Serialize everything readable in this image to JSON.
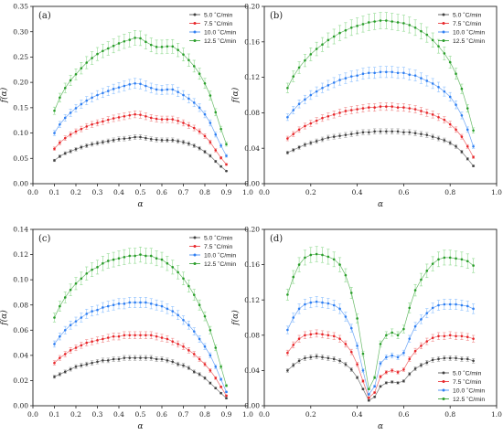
{
  "legend_labels": [
    "5.0 ˚C/min",
    "7.5 ˚C/min",
    "10.0 ˚C/min",
    "12.5 ˚C/min"
  ],
  "series_colors": [
    "#404040",
    "#e8262a",
    "#2f7ff2",
    "#2a9d2a"
  ],
  "errorbar_colors": [
    "#9a9a9a",
    "#f08a8a",
    "#8cc0ff",
    "#8ed98e"
  ],
  "chart_data": [
    {
      "type": "scatter",
      "panel_label": "(a)",
      "xlabel": "α",
      "ylabel": "f(α)",
      "xlim": [
        0.0,
        1.0
      ],
      "ylim": [
        0.0,
        0.35
      ],
      "xticks": [
        "0.0",
        "0.1",
        "0.2",
        "0.3",
        "0.4",
        "0.5",
        "0.6",
        "0.7",
        "0.8",
        "0.9",
        "1.0"
      ],
      "yticks": [
        "0.00",
        "0.05",
        "0.10",
        "0.15",
        "0.20",
        "0.25",
        "0.30",
        "0.35"
      ],
      "legend_position": "top-right",
      "x": [
        0.1,
        0.125,
        0.15,
        0.175,
        0.2,
        0.225,
        0.25,
        0.275,
        0.3,
        0.325,
        0.35,
        0.375,
        0.4,
        0.425,
        0.45,
        0.475,
        0.5,
        0.525,
        0.55,
        0.575,
        0.6,
        0.625,
        0.65,
        0.675,
        0.7,
        0.725,
        0.75,
        0.775,
        0.8,
        0.825,
        0.85,
        0.875,
        0.9
      ],
      "series": [
        {
          "name": "5.0 ˚C/min",
          "values": [
            0.046,
            0.054,
            0.06,
            0.064,
            0.068,
            0.072,
            0.075,
            0.078,
            0.08,
            0.082,
            0.084,
            0.086,
            0.088,
            0.089,
            0.09,
            0.092,
            0.092,
            0.09,
            0.088,
            0.087,
            0.086,
            0.086,
            0.086,
            0.084,
            0.082,
            0.079,
            0.075,
            0.07,
            0.063,
            0.055,
            0.044,
            0.034,
            0.025
          ]
        },
        {
          "name": "7.5 ˚C/min",
          "values": [
            0.069,
            0.081,
            0.09,
            0.097,
            0.103,
            0.108,
            0.113,
            0.117,
            0.12,
            0.123,
            0.126,
            0.129,
            0.131,
            0.133,
            0.135,
            0.137,
            0.136,
            0.133,
            0.13,
            0.128,
            0.127,
            0.127,
            0.127,
            0.124,
            0.12,
            0.115,
            0.11,
            0.103,
            0.094,
            0.082,
            0.066,
            0.051,
            0.038
          ]
        },
        {
          "name": "10.0 ˚C/min",
          "values": [
            0.1,
            0.117,
            0.13,
            0.14,
            0.149,
            0.157,
            0.164,
            0.17,
            0.175,
            0.179,
            0.183,
            0.187,
            0.19,
            0.193,
            0.196,
            0.198,
            0.197,
            0.193,
            0.189,
            0.186,
            0.185,
            0.186,
            0.186,
            0.181,
            0.175,
            0.168,
            0.16,
            0.15,
            0.137,
            0.12,
            0.097,
            0.075,
            0.055
          ]
        },
        {
          "name": "12.5 ˚C/min",
          "values": [
            0.144,
            0.17,
            0.189,
            0.204,
            0.216,
            0.228,
            0.239,
            0.248,
            0.256,
            0.262,
            0.267,
            0.272,
            0.277,
            0.281,
            0.284,
            0.288,
            0.287,
            0.28,
            0.274,
            0.27,
            0.27,
            0.271,
            0.271,
            0.264,
            0.255,
            0.244,
            0.232,
            0.217,
            0.198,
            0.174,
            0.141,
            0.108,
            0.078
          ]
        }
      ]
    },
    {
      "type": "scatter",
      "panel_label": "(b)",
      "xlabel": "α",
      "ylabel": "f(α)",
      "xlim": [
        0.0,
        1.0
      ],
      "ylim": [
        0.0,
        0.2
      ],
      "xticks": [
        "0.0",
        "0.2",
        "0.4",
        "0.6",
        "0.8",
        "1.0"
      ],
      "yticks": [
        "0.00",
        "0.04",
        "0.08",
        "0.12",
        "0.16",
        "0.20"
      ],
      "legend_position": "top-right",
      "x": [
        0.1,
        0.125,
        0.15,
        0.175,
        0.2,
        0.225,
        0.25,
        0.275,
        0.3,
        0.325,
        0.35,
        0.375,
        0.4,
        0.425,
        0.45,
        0.475,
        0.5,
        0.525,
        0.55,
        0.575,
        0.6,
        0.625,
        0.65,
        0.675,
        0.7,
        0.725,
        0.75,
        0.775,
        0.8,
        0.825,
        0.85,
        0.875,
        0.9
      ],
      "series": [
        {
          "name": "5.0 ˚C/min",
          "values": [
            0.035,
            0.038,
            0.041,
            0.044,
            0.046,
            0.048,
            0.05,
            0.052,
            0.053,
            0.054,
            0.055,
            0.056,
            0.057,
            0.058,
            0.058,
            0.059,
            0.059,
            0.059,
            0.059,
            0.059,
            0.058,
            0.058,
            0.057,
            0.056,
            0.055,
            0.053,
            0.051,
            0.049,
            0.046,
            0.042,
            0.036,
            0.028,
            0.02
          ]
        },
        {
          "name": "7.5 ˚C/min",
          "values": [
            0.051,
            0.056,
            0.061,
            0.065,
            0.068,
            0.071,
            0.074,
            0.076,
            0.078,
            0.08,
            0.082,
            0.083,
            0.084,
            0.085,
            0.086,
            0.086,
            0.087,
            0.087,
            0.087,
            0.086,
            0.086,
            0.085,
            0.084,
            0.082,
            0.08,
            0.078,
            0.075,
            0.072,
            0.067,
            0.061,
            0.053,
            0.042,
            0.03
          ]
        },
        {
          "name": "10.0 ˚C/min",
          "values": [
            0.075,
            0.083,
            0.09,
            0.095,
            0.1,
            0.104,
            0.108,
            0.111,
            0.114,
            0.117,
            0.119,
            0.121,
            0.122,
            0.124,
            0.125,
            0.125,
            0.126,
            0.126,
            0.126,
            0.125,
            0.125,
            0.123,
            0.122,
            0.119,
            0.116,
            0.113,
            0.109,
            0.104,
            0.098,
            0.089,
            0.077,
            0.061,
            0.042
          ]
        },
        {
          "name": "12.5 ˚C/min",
          "values": [
            0.108,
            0.121,
            0.131,
            0.139,
            0.146,
            0.152,
            0.157,
            0.162,
            0.166,
            0.17,
            0.173,
            0.176,
            0.178,
            0.18,
            0.182,
            0.183,
            0.184,
            0.184,
            0.183,
            0.182,
            0.181,
            0.179,
            0.176,
            0.172,
            0.168,
            0.162,
            0.155,
            0.147,
            0.137,
            0.124,
            0.107,
            0.085,
            0.06
          ]
        }
      ]
    },
    {
      "type": "scatter",
      "panel_label": "(c)",
      "xlabel": "α",
      "ylabel": "f(α)",
      "xlim": [
        0.0,
        1.0
      ],
      "ylim": [
        0.0,
        0.14
      ],
      "xticks": [
        "0.0",
        "0.1",
        "0.2",
        "0.3",
        "0.4",
        "0.5",
        "0.6",
        "0.7",
        "0.8",
        "0.9",
        "1.0"
      ],
      "yticks": [
        "0.00",
        "0.02",
        "0.04",
        "0.06",
        "0.08",
        "0.10",
        "0.12",
        "0.14"
      ],
      "legend_position": "top-right",
      "x": [
        0.1,
        0.125,
        0.15,
        0.175,
        0.2,
        0.225,
        0.25,
        0.275,
        0.3,
        0.325,
        0.35,
        0.375,
        0.4,
        0.425,
        0.45,
        0.475,
        0.5,
        0.525,
        0.55,
        0.575,
        0.6,
        0.625,
        0.65,
        0.675,
        0.7,
        0.725,
        0.75,
        0.775,
        0.8,
        0.825,
        0.85,
        0.875,
        0.9
      ],
      "series": [
        {
          "name": "5.0 ˚C/min",
          "values": [
            0.023,
            0.025,
            0.027,
            0.029,
            0.031,
            0.032,
            0.033,
            0.034,
            0.035,
            0.036,
            0.036,
            0.037,
            0.037,
            0.038,
            0.038,
            0.038,
            0.038,
            0.038,
            0.038,
            0.037,
            0.037,
            0.036,
            0.035,
            0.033,
            0.032,
            0.03,
            0.027,
            0.025,
            0.022,
            0.018,
            0.014,
            0.01,
            0.006
          ]
        },
        {
          "name": "7.5 ˚C/min",
          "values": [
            0.034,
            0.038,
            0.041,
            0.044,
            0.046,
            0.048,
            0.05,
            0.051,
            0.052,
            0.053,
            0.054,
            0.055,
            0.055,
            0.056,
            0.056,
            0.056,
            0.056,
            0.056,
            0.056,
            0.055,
            0.054,
            0.053,
            0.051,
            0.049,
            0.047,
            0.044,
            0.041,
            0.037,
            0.033,
            0.028,
            0.022,
            0.015,
            0.008
          ]
        },
        {
          "name": "10.0 ˚C/min",
          "values": [
            0.049,
            0.055,
            0.06,
            0.064,
            0.067,
            0.07,
            0.073,
            0.075,
            0.076,
            0.078,
            0.079,
            0.08,
            0.081,
            0.081,
            0.082,
            0.082,
            0.082,
            0.082,
            0.081,
            0.08,
            0.079,
            0.077,
            0.075,
            0.072,
            0.068,
            0.064,
            0.059,
            0.053,
            0.047,
            0.04,
            0.031,
            0.021,
            0.011
          ]
        },
        {
          "name": "12.5 ˚C/min",
          "values": [
            0.07,
            0.079,
            0.086,
            0.092,
            0.097,
            0.101,
            0.105,
            0.108,
            0.11,
            0.113,
            0.115,
            0.116,
            0.117,
            0.118,
            0.119,
            0.119,
            0.12,
            0.119,
            0.119,
            0.117,
            0.116,
            0.113,
            0.11,
            0.106,
            0.101,
            0.095,
            0.088,
            0.08,
            0.071,
            0.06,
            0.046,
            0.031,
            0.016
          ]
        }
      ]
    },
    {
      "type": "scatter",
      "panel_label": "(d)",
      "xlabel": "α",
      "ylabel": "f(α)",
      "xlim": [
        0.0,
        1.0
      ],
      "ylim": [
        0.0,
        0.2
      ],
      "xticks": [
        "0.0",
        "0.2",
        "0.4",
        "0.6",
        "0.8",
        "1.0"
      ],
      "yticks": [
        "0.00",
        "0.04",
        "0.08",
        "0.12",
        "0.16",
        "0.20"
      ],
      "legend_position": "bottom-right",
      "x": [
        0.1,
        0.125,
        0.15,
        0.175,
        0.2,
        0.225,
        0.25,
        0.275,
        0.3,
        0.325,
        0.35,
        0.375,
        0.4,
        0.425,
        0.45,
        0.475,
        0.5,
        0.525,
        0.55,
        0.575,
        0.6,
        0.625,
        0.65,
        0.675,
        0.7,
        0.725,
        0.75,
        0.775,
        0.8,
        0.825,
        0.85,
        0.875,
        0.9
      ],
      "series": [
        {
          "name": "5.0 ˚C/min",
          "values": [
            0.04,
            0.046,
            0.051,
            0.054,
            0.055,
            0.056,
            0.055,
            0.054,
            0.053,
            0.051,
            0.047,
            0.041,
            0.032,
            0.019,
            0.006,
            0.01,
            0.022,
            0.026,
            0.027,
            0.026,
            0.028,
            0.036,
            0.042,
            0.046,
            0.049,
            0.052,
            0.053,
            0.054,
            0.054,
            0.054,
            0.053,
            0.053,
            0.051
          ]
        },
        {
          "name": "7.5 ˚C/min",
          "values": [
            0.06,
            0.069,
            0.076,
            0.08,
            0.081,
            0.082,
            0.081,
            0.08,
            0.079,
            0.076,
            0.07,
            0.061,
            0.047,
            0.028,
            0.009,
            0.015,
            0.033,
            0.038,
            0.04,
            0.038,
            0.041,
            0.053,
            0.062,
            0.068,
            0.073,
            0.077,
            0.079,
            0.079,
            0.08,
            0.079,
            0.079,
            0.078,
            0.076
          ]
        },
        {
          "name": "10.0 ˚C/min",
          "values": [
            0.086,
            0.1,
            0.11,
            0.115,
            0.117,
            0.118,
            0.117,
            0.116,
            0.114,
            0.11,
            0.101,
            0.088,
            0.068,
            0.04,
            0.013,
            0.022,
            0.048,
            0.055,
            0.057,
            0.055,
            0.06,
            0.076,
            0.09,
            0.098,
            0.105,
            0.111,
            0.114,
            0.115,
            0.115,
            0.115,
            0.114,
            0.113,
            0.11
          ]
        },
        {
          "name": "12.5 ˚C/min",
          "values": [
            0.126,
            0.146,
            0.16,
            0.168,
            0.171,
            0.172,
            0.171,
            0.169,
            0.166,
            0.16,
            0.148,
            0.128,
            0.099,
            0.059,
            0.019,
            0.032,
            0.07,
            0.08,
            0.083,
            0.08,
            0.087,
            0.111,
            0.131,
            0.143,
            0.153,
            0.161,
            0.166,
            0.168,
            0.168,
            0.167,
            0.166,
            0.164,
            0.159
          ]
        }
      ]
    }
  ]
}
